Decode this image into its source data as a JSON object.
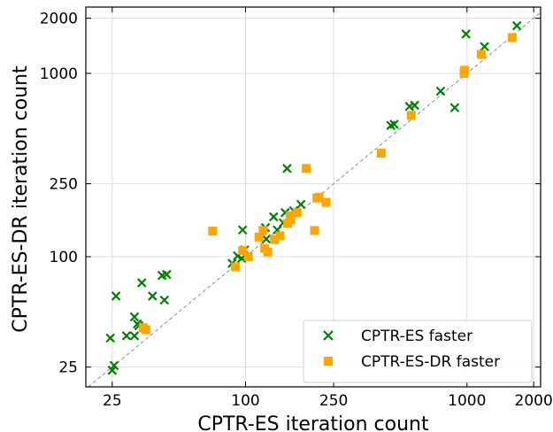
{
  "chart_data": {
    "type": "scatter",
    "xlabel": "CPTR-ES iteration count",
    "ylabel": "CPTR-ES-DR iteration count",
    "scale": "log",
    "xlim": [
      19,
      2150
    ],
    "ylim": [
      19.5,
      2300
    ],
    "x_ticks": [
      25,
      100,
      250,
      1000,
      2000
    ],
    "x_tick_labels": [
      "25",
      "100",
      "250",
      "1000",
      "2000"
    ],
    "y_ticks": [
      25,
      100,
      250,
      1000,
      2000
    ],
    "y_tick_labels": [
      "25",
      "100",
      "250",
      "1000",
      "2000"
    ],
    "grid": true,
    "reference_line": "y = x",
    "legend_position": "bottom-right",
    "colors": {
      "green": "#008000",
      "orange": "#ffa500",
      "gray": "#808080"
    },
    "series": [
      {
        "name": "CPTR-ES faster",
        "marker": "x",
        "color": "#008000",
        "points": [
          [
            24.5,
            36
          ],
          [
            25,
            24
          ],
          [
            25.5,
            25.5
          ],
          [
            26,
            61
          ],
          [
            29,
            37
          ],
          [
            31.5,
            37
          ],
          [
            31.5,
            47
          ],
          [
            32.5,
            43
          ],
          [
            33,
            42
          ],
          [
            34,
            72
          ],
          [
            38,
            61
          ],
          [
            42,
            79
          ],
          [
            43,
            58
          ],
          [
            44,
            80
          ],
          [
            87,
            92
          ],
          [
            92,
            101
          ],
          [
            96,
            98
          ],
          [
            97,
            140
          ],
          [
            99,
            109
          ],
          [
            123,
            144
          ],
          [
            124,
            125
          ],
          [
            134,
            165
          ],
          [
            139,
            140
          ],
          [
            148,
            153
          ],
          [
            151,
            174
          ],
          [
            154,
            303
          ],
          [
            165,
            178
          ],
          [
            178,
            193
          ],
          [
            453,
            520
          ],
          [
            469,
            528
          ],
          [
            550,
            660
          ],
          [
            580,
            670
          ],
          [
            760,
            800
          ],
          [
            880,
            650
          ],
          [
            990,
            1640
          ],
          [
            1200,
            1400
          ],
          [
            1680,
            1820
          ]
        ]
      },
      {
        "name": "CPTR-ES-DR faster",
        "marker": "square",
        "color": "#ffa500",
        "points": [
          [
            34.5,
            41
          ],
          [
            35.5,
            40
          ],
          [
            71,
            138
          ],
          [
            90,
            88
          ],
          [
            97,
            108
          ],
          [
            103,
            100
          ],
          [
            115,
            128
          ],
          [
            120,
            139
          ],
          [
            122,
            111
          ],
          [
            126,
            106
          ],
          [
            135,
            124
          ],
          [
            143,
            130
          ],
          [
            155,
            152
          ],
          [
            159,
            167
          ],
          [
            160,
            159
          ],
          [
            171,
            174
          ],
          [
            188,
            303
          ],
          [
            205,
            139
          ],
          [
            210,
            209
          ],
          [
            215,
            211
          ],
          [
            231,
            198
          ],
          [
            410,
            367
          ],
          [
            560,
            590
          ],
          [
            970,
            1000
          ],
          [
            975,
            1040
          ],
          [
            1160,
            1270
          ],
          [
            1600,
            1570
          ]
        ]
      }
    ]
  }
}
